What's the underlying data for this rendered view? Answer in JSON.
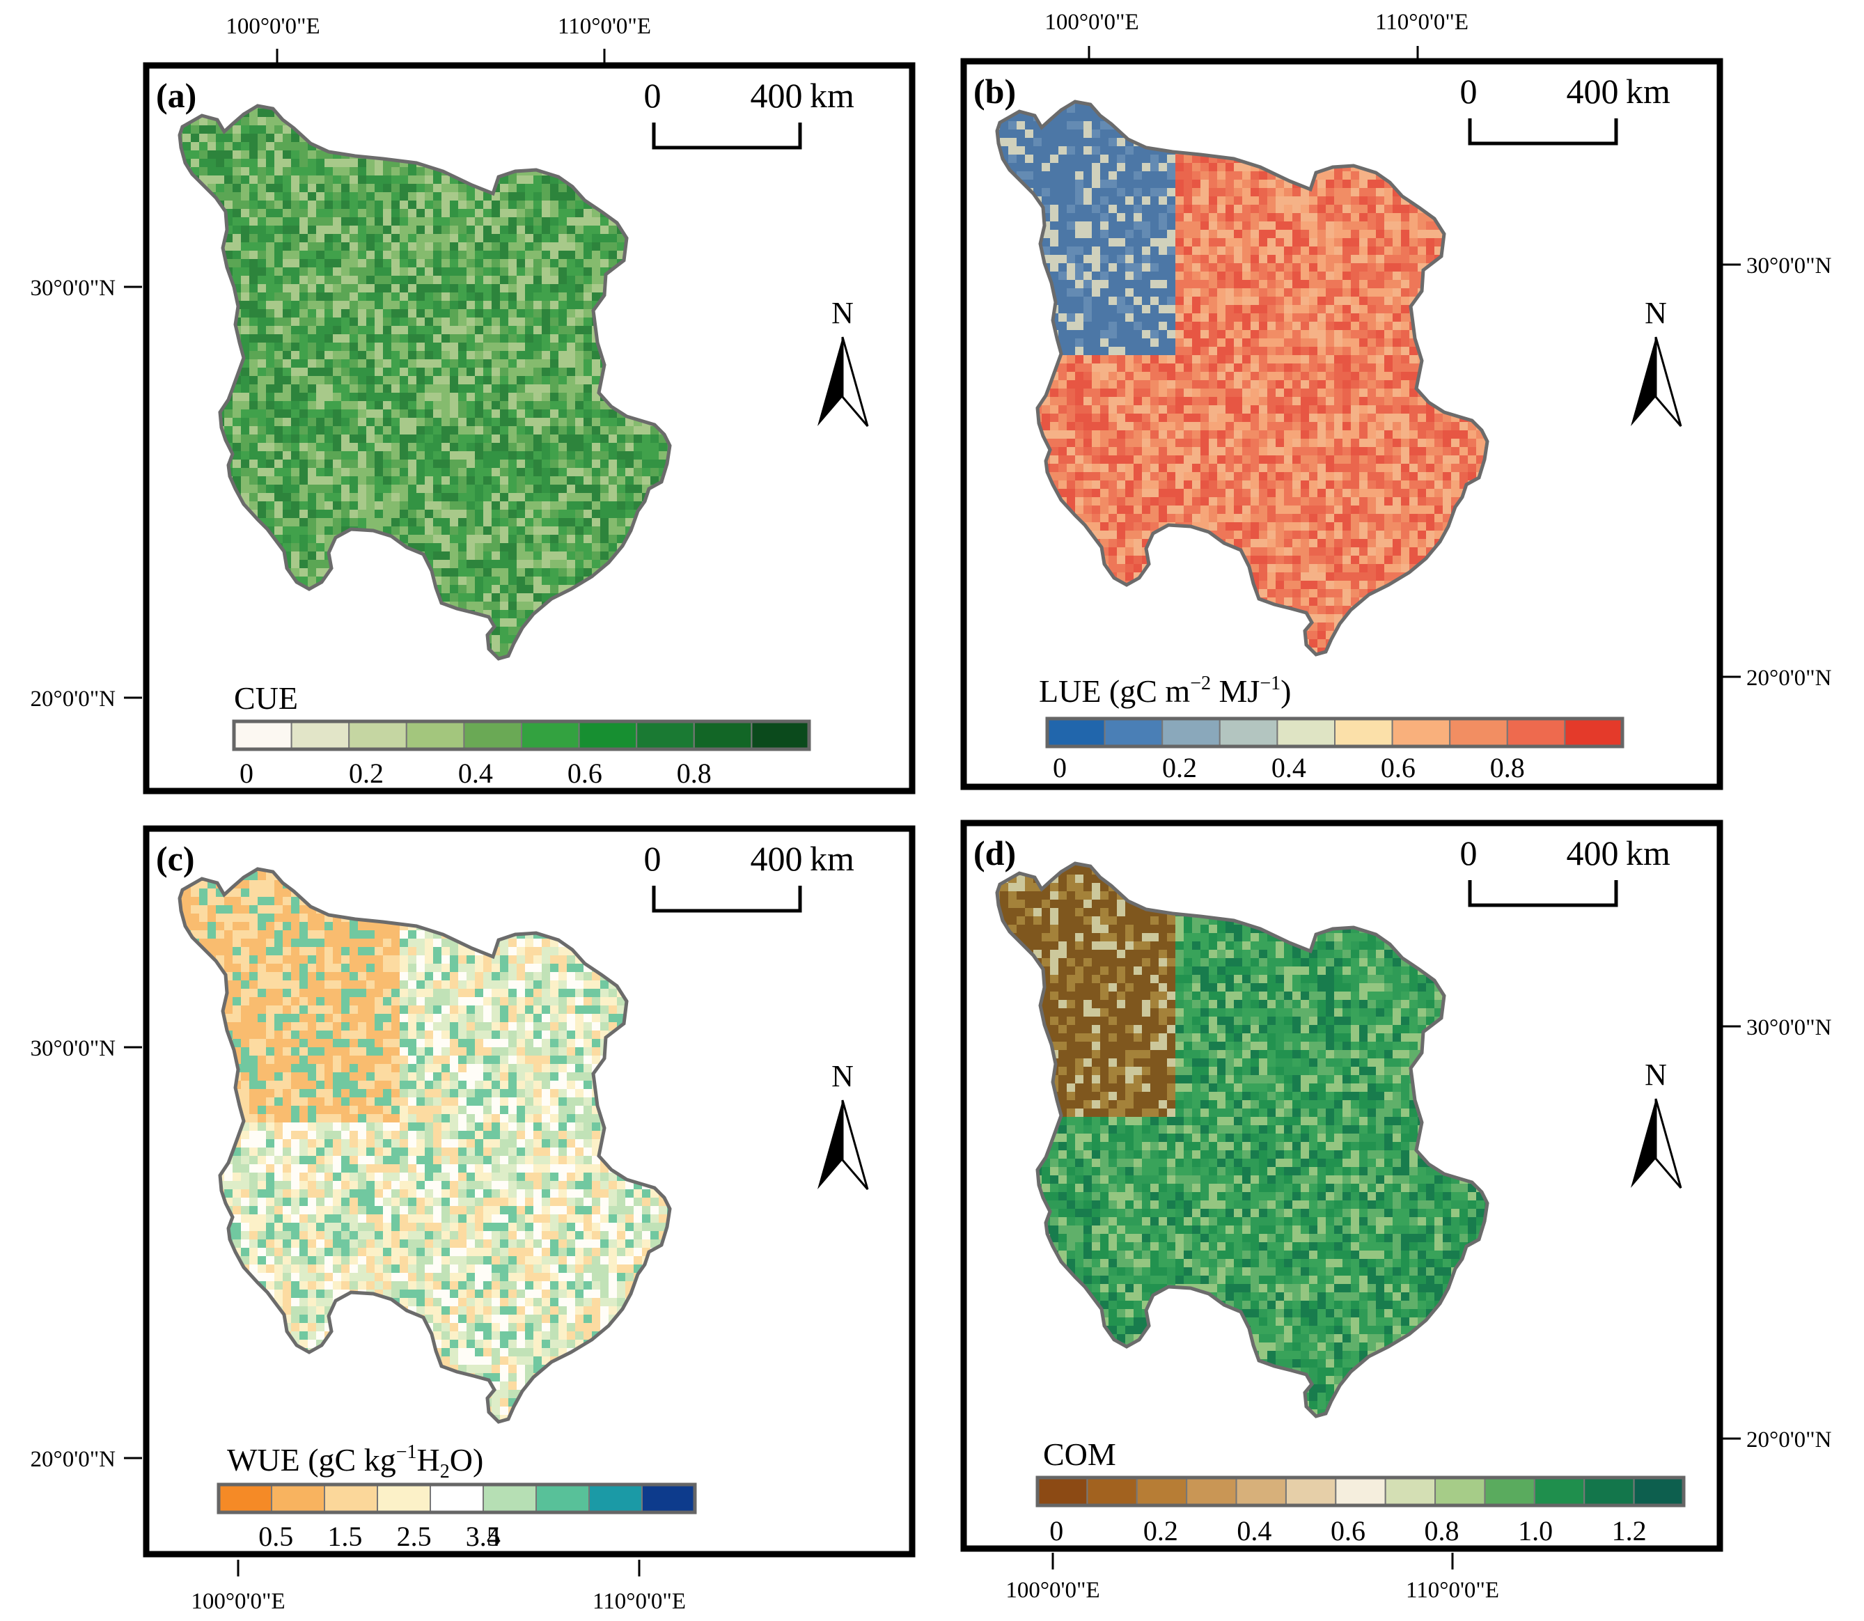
{
  "coordinate_labels": {
    "lon_100": "100°0'0\"E",
    "lon_110": "110°0'0\"E",
    "lat_30": "30°0'0\"N",
    "lat_20": "20°0'0\"N"
  },
  "scalebar": {
    "start": "0",
    "end": "400",
    "unit": "km"
  },
  "north_arrow": {
    "label": "N"
  },
  "colors": {
    "frame": "#000000",
    "region_outline": "#6b6b6b",
    "nodata": "#ffffff"
  },
  "panels": [
    {
      "letter": "(a)",
      "variable_name": "CUE",
      "legend_title": "CUE",
      "legend_ticks": [
        "0",
        "0.2",
        "0.4",
        "0.6",
        "0.8"
      ],
      "legend_colors": [
        "#fcf8f2",
        "#e2e5c8",
        "#c5d6a2",
        "#a3c67d",
        "#6aa955",
        "#33a240",
        "#178f31",
        "#1a7a33",
        "#126626",
        "#0b4a1c"
      ],
      "map_palette": [
        "#a8c98a",
        "#7fb868",
        "#4ea04a",
        "#2f9a3f",
        "#1f8a36",
        "#17782e"
      ]
    },
    {
      "letter": "(b)",
      "variable_name": "LUE",
      "legend_title": "LUE (gC m",
      "legend_title_sup1": "−2",
      "legend_title_mid": " MJ",
      "legend_title_sup2": "−1",
      "legend_title_end": ")",
      "legend_ticks": [
        "0",
        "0.2",
        "0.4",
        "0.6",
        "0.8"
      ],
      "legend_colors": [
        "#2166ac",
        "#4a7fb6",
        "#8aa8bb",
        "#b3c5c0",
        "#dfe4c4",
        "#fbe0a9",
        "#f9b07c",
        "#f28e62",
        "#ee6a4e",
        "#e43a2a"
      ],
      "map_palette": [
        "#f6a679",
        "#f08862",
        "#ec6f52",
        "#e85a45",
        "#e4483a",
        "#f4b48a"
      ]
    },
    {
      "letter": "(c)",
      "variable_name": "WUE",
      "legend_title": "WUE (gC kg",
      "legend_title_sup1": "−1",
      "legend_title_mid": "H",
      "legend_title_sub": "2",
      "legend_title_end": "O)",
      "legend_ticks": [
        "0.5",
        "1.5",
        "2.5",
        "3.5",
        "4"
      ],
      "legend_colors": [
        "#f58a26",
        "#f8b35f",
        "#fbd79a",
        "#fcf1c8",
        "#ffffff",
        "#b6dfb4",
        "#58c199",
        "#1b9aa6",
        "#0d3b8c"
      ],
      "map_palette": [
        "#fcf1c8",
        "#ffffff",
        "#b6dfb4",
        "#d8ecc8",
        "#58c199",
        "#fbd79a"
      ]
    },
    {
      "letter": "(d)",
      "variable_name": "COM",
      "legend_title": "COM",
      "legend_ticks": [
        "0",
        "0.2",
        "0.4",
        "0.6",
        "0.8",
        "1.0",
        "1.2"
      ],
      "legend_colors": [
        "#8c4a14",
        "#a2621f",
        "#b77d35",
        "#c99655",
        "#d7b07a",
        "#e6cfa8",
        "#f5eedd",
        "#d4dfb4",
        "#a6cc88",
        "#5aab5e",
        "#1f8f4d",
        "#13764b",
        "#0d5f4e"
      ],
      "map_palette": [
        "#3aa35a",
        "#1f8f4d",
        "#2e9a56",
        "#67b36d",
        "#13764b",
        "#a6cc88"
      ]
    }
  ]
}
